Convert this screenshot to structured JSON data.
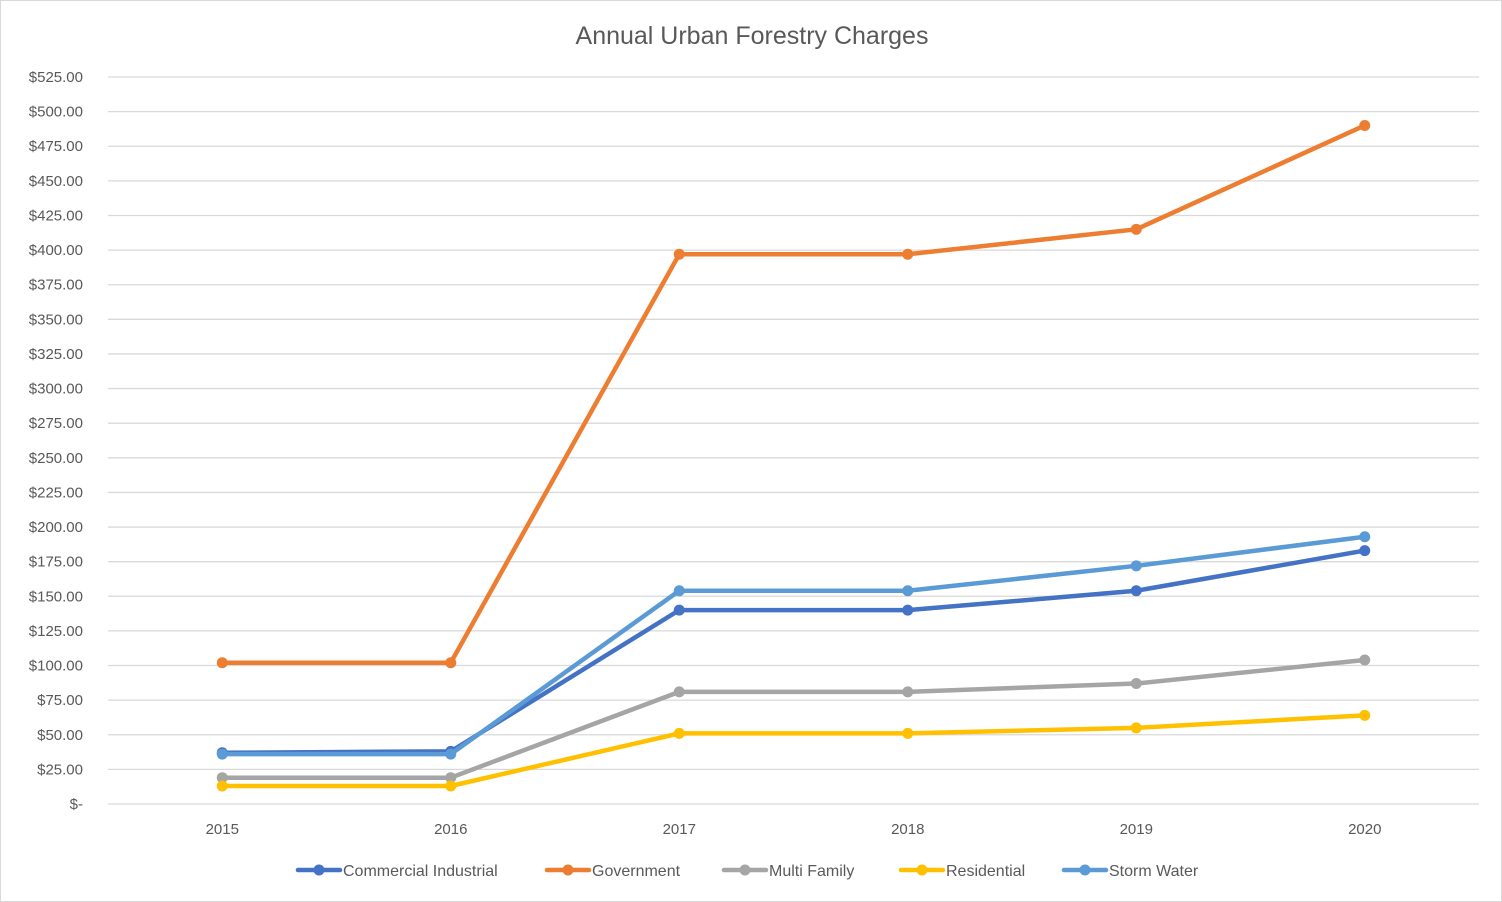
{
  "chart_data": {
    "type": "line",
    "title": "Annual Urban Forestry Charges",
    "xlabel": "",
    "ylabel": "",
    "categories": [
      "2015",
      "2016",
      "2017",
      "2018",
      "2019",
      "2020"
    ],
    "ylim": [
      0,
      525
    ],
    "yticks": [
      0,
      25,
      50,
      75,
      100,
      125,
      150,
      175,
      200,
      225,
      250,
      275,
      300,
      325,
      350,
      375,
      400,
      425,
      450,
      475,
      500,
      525
    ],
    "ytick_labels": [
      "$-",
      "$25.00",
      "$50.00",
      "$75.00",
      "$100.00",
      "$125.00",
      "$150.00",
      "$175.00",
      "$200.00",
      "$225.00",
      "$250.00",
      "$275.00",
      "$300.00",
      "$325.00",
      "$350.00",
      "$375.00",
      "$400.00",
      "$425.00",
      "$450.00",
      "$475.00",
      "$500.00",
      "$525.00"
    ],
    "grid": true,
    "legend_position": "bottom",
    "series": [
      {
        "name": "Commercial Industrial",
        "color": "#4472C4",
        "values": [
          37,
          38,
          140,
          140,
          154,
          183
        ]
      },
      {
        "name": "Government",
        "color": "#ED7D31",
        "values": [
          102,
          102,
          397,
          397,
          415,
          490
        ]
      },
      {
        "name": "Multi Family",
        "color": "#A5A5A5",
        "values": [
          19,
          19,
          81,
          81,
          87,
          104
        ]
      },
      {
        "name": "Residential",
        "color": "#FFC000",
        "values": [
          13,
          13,
          51,
          51,
          55,
          64
        ]
      },
      {
        "name": "Storm Water",
        "color": "#5B9BD5",
        "values": [
          36,
          36,
          154,
          154,
          172,
          193
        ]
      }
    ]
  }
}
